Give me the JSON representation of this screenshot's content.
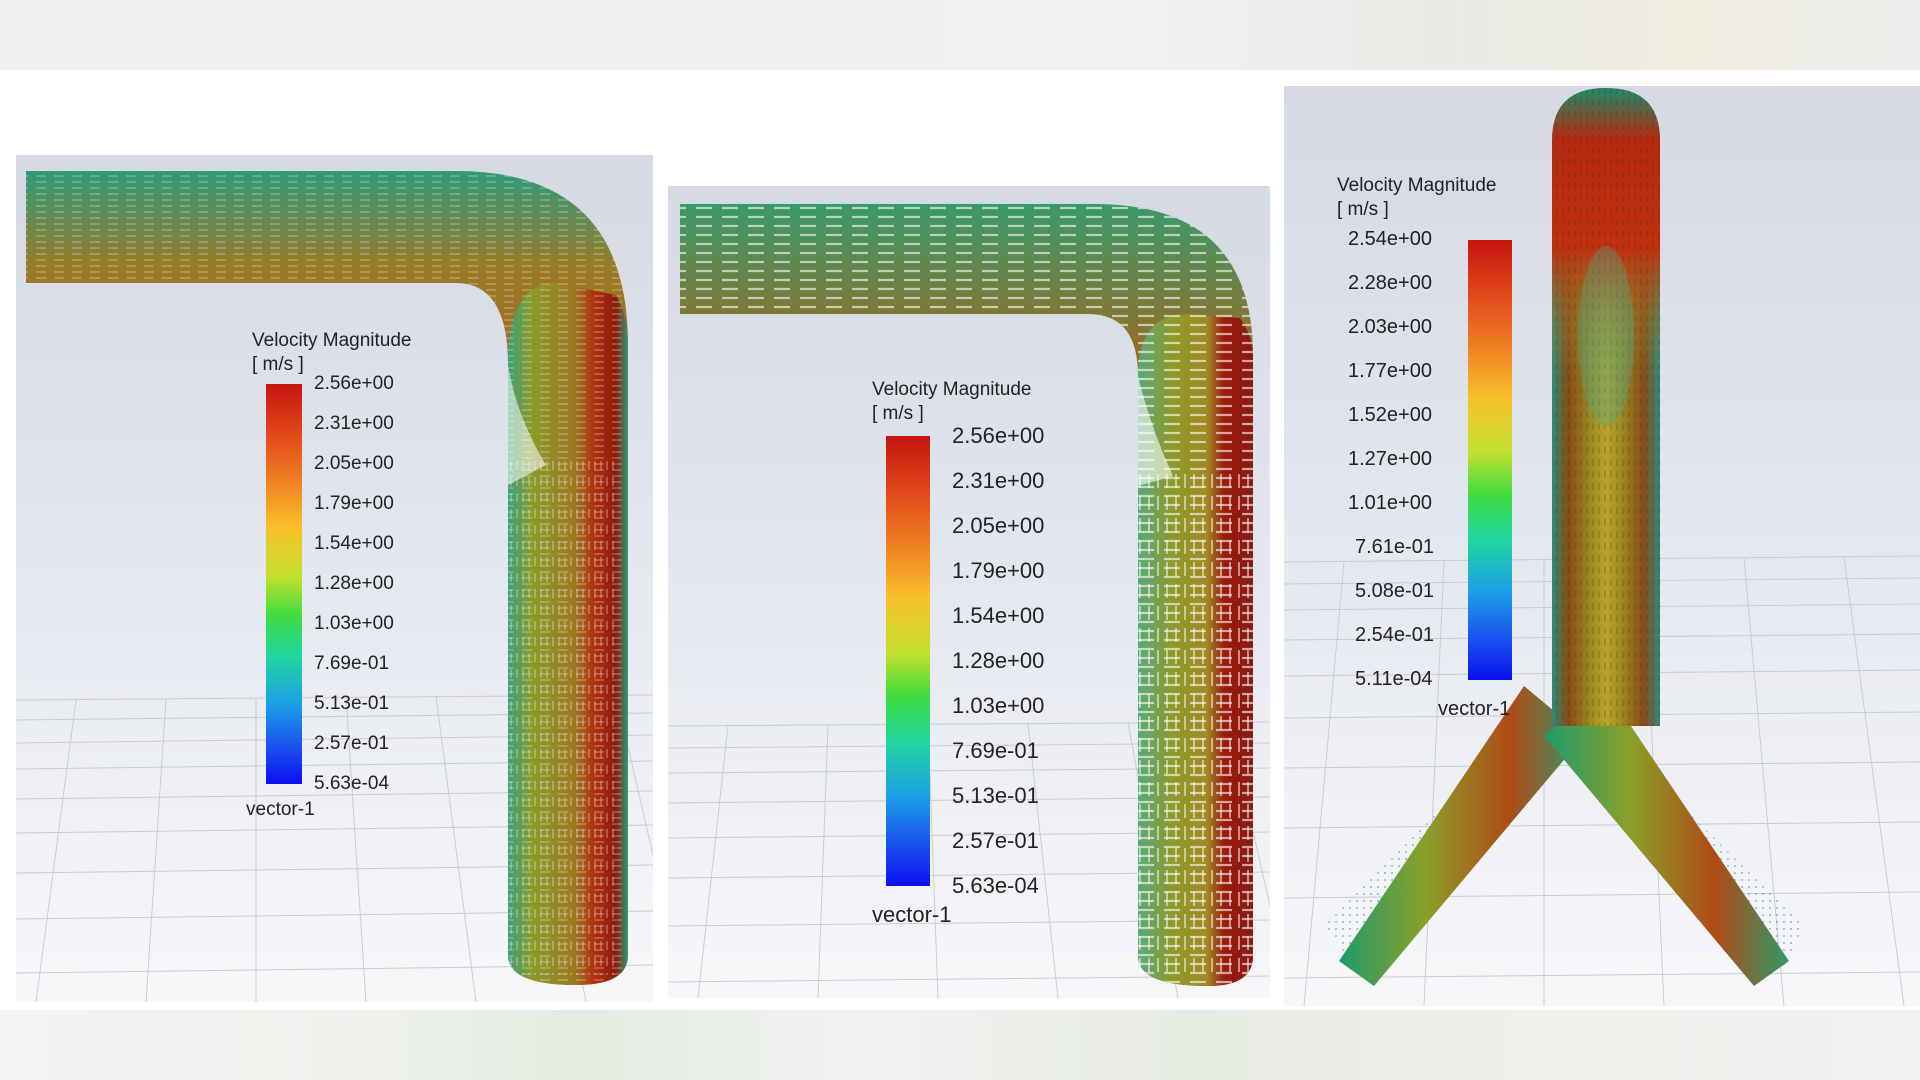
{
  "panels": [
    {
      "id": "panel-elbow-left",
      "legend": {
        "title": "Velocity Magnitude",
        "unit": "[ m/s ]",
        "ticks": [
          "2.56e+00",
          "2.31e+00",
          "2.05e+00",
          "1.79e+00",
          "1.54e+00",
          "1.28e+00",
          "1.03e+00",
          "7.69e-01",
          "5.13e-01",
          "2.57e-01",
          "5.63e-04"
        ],
        "name": "vector-1"
      }
    },
    {
      "id": "panel-elbow-middle",
      "legend": {
        "title": "Velocity Magnitude",
        "unit": "[ m/s ]",
        "ticks": [
          "2.56e+00",
          "2.31e+00",
          "2.05e+00",
          "1.79e+00",
          "1.54e+00",
          "1.28e+00",
          "1.03e+00",
          "7.69e-01",
          "5.13e-01",
          "2.57e-01",
          "5.63e-04"
        ],
        "name": "vector-1"
      }
    },
    {
      "id": "panel-y-junction",
      "legend": {
        "title": "Velocity Magnitude",
        "unit": "[ m/s ]",
        "ticks": [
          "2.54e+00",
          "2.28e+00",
          "2.03e+00",
          "1.77e+00",
          "1.52e+00",
          "1.27e+00",
          "1.01e+00",
          "7.61e-01",
          "5.08e-01",
          "2.54e-01",
          "5.11e-04"
        ],
        "name": "vector-1"
      }
    }
  ],
  "colormap": {
    "high": "#c4140f",
    "mid": "#c5e02e",
    "low": "#0a10f0",
    "pipe_core": "#b02a10",
    "pipe_mid": "#9a8a20",
    "pipe_edge": "#2f9a7a"
  }
}
